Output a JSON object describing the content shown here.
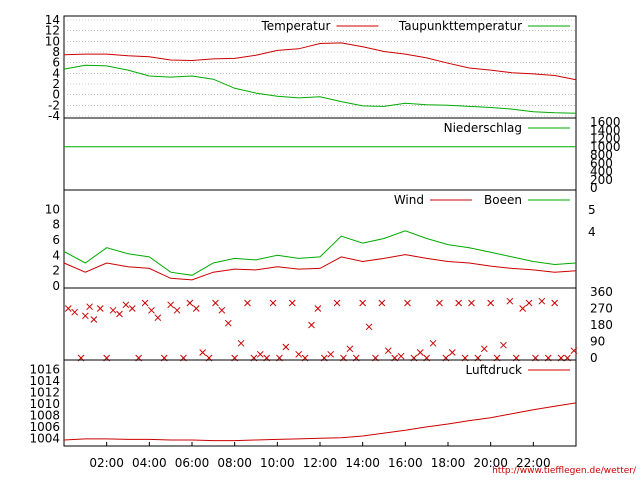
{
  "chart_data": [
    {
      "type": "line",
      "name": "temperature-panel",
      "ylim": [
        -4,
        14
      ],
      "yticks": [
        -4,
        -2,
        0,
        2,
        4,
        6,
        8,
        10,
        12,
        14
      ],
      "grid": true,
      "legend_position": "top-right",
      "series": [
        {
          "name": "Temperatur",
          "color": "#cc0000",
          "x": [
            0,
            1,
            2,
            3,
            4,
            5,
            6,
            7,
            8,
            9,
            10,
            11,
            12,
            13,
            14,
            15,
            16,
            17,
            18,
            19,
            20,
            21,
            22,
            23,
            24
          ],
          "values": [
            7.5,
            7.6,
            7.6,
            7.3,
            7.1,
            6.5,
            6.4,
            6.7,
            6.8,
            7.4,
            8.3,
            8.6,
            9.6,
            9.7,
            9.0,
            8.1,
            7.6,
            6.9,
            5.9,
            5.0,
            4.6,
            4.1,
            3.9,
            3.6,
            2.8
          ]
        },
        {
          "name": "Taupunkttemperatur",
          "color": "#00aa00",
          "x": [
            0,
            1,
            2,
            3,
            4,
            5,
            6,
            7,
            8,
            9,
            10,
            11,
            12,
            13,
            14,
            15,
            16,
            17,
            18,
            19,
            20,
            21,
            22,
            23,
            24
          ],
          "values": [
            4.8,
            5.5,
            5.4,
            4.6,
            3.5,
            3.3,
            3.5,
            2.9,
            1.2,
            0.3,
            -0.3,
            -0.6,
            -0.4,
            -1.3,
            -2.1,
            -2.2,
            -1.6,
            -1.9,
            -2.0,
            -2.2,
            -2.4,
            -2.7,
            -3.2,
            -3.4,
            -3.5
          ]
        }
      ]
    },
    {
      "type": "line",
      "name": "precipitation-panel",
      "ylim": [
        0,
        1600
      ],
      "yticks": [
        0,
        200,
        400,
        600,
        800,
        1000,
        1200,
        1400,
        1600
      ],
      "series": [
        {
          "name": "Niederschlag",
          "color": "#00aa00",
          "x": [
            0,
            24
          ],
          "values": [
            1000,
            1000
          ]
        }
      ]
    },
    {
      "type": "line",
      "name": "wind-panel",
      "ylim": [
        0,
        12
      ],
      "yticks": [
        0,
        2,
        4,
        6,
        8,
        10
      ],
      "right_ticks": [
        "4",
        "5"
      ],
      "series": [
        {
          "name": "Wind",
          "color": "#cc0000",
          "x": [
            0,
            1,
            2,
            3,
            4,
            5,
            6,
            7,
            8,
            9,
            10,
            11,
            12,
            13,
            14,
            15,
            16,
            17,
            18,
            19,
            20,
            21,
            22,
            23,
            24
          ],
          "values": [
            3.0,
            1.8,
            3.0,
            2.5,
            2.3,
            1.0,
            0.8,
            1.8,
            2.2,
            2.1,
            2.5,
            2.2,
            2.3,
            3.8,
            3.2,
            3.6,
            4.1,
            3.6,
            3.2,
            3.0,
            2.6,
            2.3,
            2.1,
            1.8,
            2.0
          ]
        },
        {
          "name": "Boeen",
          "color": "#00aa00",
          "x": [
            0,
            1,
            2,
            3,
            4,
            5,
            6,
            7,
            8,
            9,
            10,
            11,
            12,
            13,
            14,
            15,
            16,
            17,
            18,
            19,
            20,
            21,
            22,
            23,
            24
          ],
          "values": [
            4.5,
            3.0,
            5.0,
            4.2,
            3.8,
            1.8,
            1.4,
            3.0,
            3.6,
            3.4,
            4.0,
            3.6,
            3.8,
            6.5,
            5.6,
            6.2,
            7.2,
            6.2,
            5.4,
            5.0,
            4.4,
            3.8,
            3.2,
            2.8,
            3.0
          ]
        }
      ]
    },
    {
      "type": "scatter",
      "name": "wind-direction-panel",
      "ylim": [
        0,
        360
      ],
      "yticks": [
        0,
        90,
        180,
        270,
        360
      ],
      "marker": "x",
      "color": "#cc0000",
      "note_points": [
        {
          "x": 0.2,
          "y": 270
        },
        {
          "x": 0.5,
          "y": 250
        },
        {
          "x": 0.8,
          "y": 0
        },
        {
          "x": 1.0,
          "y": 230
        },
        {
          "x": 1.2,
          "y": 280
        },
        {
          "x": 1.4,
          "y": 210
        },
        {
          "x": 1.7,
          "y": 270
        },
        {
          "x": 2.0,
          "y": 0
        },
        {
          "x": 2.3,
          "y": 260
        },
        {
          "x": 2.6,
          "y": 240
        },
        {
          "x": 2.9,
          "y": 290
        },
        {
          "x": 3.2,
          "y": 270
        },
        {
          "x": 3.5,
          "y": 0
        },
        {
          "x": 3.8,
          "y": 300
        },
        {
          "x": 4.1,
          "y": 260
        },
        {
          "x": 4.4,
          "y": 220
        },
        {
          "x": 4.7,
          "y": 0
        },
        {
          "x": 5.0,
          "y": 290
        },
        {
          "x": 5.3,
          "y": 260
        },
        {
          "x": 5.6,
          "y": 0
        },
        {
          "x": 5.9,
          "y": 300
        },
        {
          "x": 6.2,
          "y": 270
        },
        {
          "x": 6.5,
          "y": 30
        },
        {
          "x": 6.8,
          "y": 0
        },
        {
          "x": 7.1,
          "y": 300
        },
        {
          "x": 7.4,
          "y": 260
        },
        {
          "x": 7.7,
          "y": 190
        },
        {
          "x": 8.0,
          "y": 0
        },
        {
          "x": 8.3,
          "y": 80
        },
        {
          "x": 8.6,
          "y": 300
        },
        {
          "x": 8.9,
          "y": 0
        },
        {
          "x": 9.2,
          "y": 20
        },
        {
          "x": 9.5,
          "y": 0
        },
        {
          "x": 9.8,
          "y": 300
        },
        {
          "x": 10.1,
          "y": 0
        },
        {
          "x": 10.4,
          "y": 60
        },
        {
          "x": 10.7,
          "y": 300
        },
        {
          "x": 11.0,
          "y": 20
        },
        {
          "x": 11.3,
          "y": 0
        },
        {
          "x": 11.6,
          "y": 180
        },
        {
          "x": 11.9,
          "y": 270
        },
        {
          "x": 12.2,
          "y": 0
        },
        {
          "x": 12.5,
          "y": 20
        },
        {
          "x": 12.8,
          "y": 300
        },
        {
          "x": 13.1,
          "y": 0
        },
        {
          "x": 13.4,
          "y": 50
        },
        {
          "x": 13.7,
          "y": 0
        },
        {
          "x": 14.0,
          "y": 300
        },
        {
          "x": 14.3,
          "y": 170
        },
        {
          "x": 14.6,
          "y": 0
        },
        {
          "x": 14.9,
          "y": 300
        },
        {
          "x": 15.2,
          "y": 40
        },
        {
          "x": 15.5,
          "y": 0
        },
        {
          "x": 15.8,
          "y": 10
        },
        {
          "x": 16.1,
          "y": 300
        },
        {
          "x": 16.4,
          "y": 0
        },
        {
          "x": 16.7,
          "y": 30
        },
        {
          "x": 17.0,
          "y": 0
        },
        {
          "x": 17.3,
          "y": 80
        },
        {
          "x": 17.6,
          "y": 300
        },
        {
          "x": 17.9,
          "y": 0
        },
        {
          "x": 18.2,
          "y": 30
        },
        {
          "x": 18.5,
          "y": 300
        },
        {
          "x": 18.8,
          "y": 0
        },
        {
          "x": 19.1,
          "y": 300
        },
        {
          "x": 19.4,
          "y": 0
        },
        {
          "x": 19.7,
          "y": 50
        },
        {
          "x": 20.0,
          "y": 300
        },
        {
          "x": 20.3,
          "y": 0
        },
        {
          "x": 20.6,
          "y": 70
        },
        {
          "x": 20.9,
          "y": 310
        },
        {
          "x": 21.2,
          "y": 0
        },
        {
          "x": 21.5,
          "y": 270
        },
        {
          "x": 21.8,
          "y": 300
        },
        {
          "x": 22.1,
          "y": 0
        },
        {
          "x": 22.4,
          "y": 310
        },
        {
          "x": 22.7,
          "y": 0
        },
        {
          "x": 23.0,
          "y": 300
        },
        {
          "x": 23.3,
          "y": 0
        },
        {
          "x": 23.6,
          "y": 0
        },
        {
          "x": 23.9,
          "y": 40
        }
      ]
    },
    {
      "type": "line",
      "name": "pressure-panel",
      "ylim": [
        1003,
        1017
      ],
      "yticks": [
        1004,
        1006,
        1008,
        1010,
        1012,
        1014,
        1016
      ],
      "series": [
        {
          "name": "Luftdruck",
          "color": "#cc0000",
          "x": [
            0,
            1,
            2,
            3,
            4,
            5,
            6,
            7,
            8,
            9,
            10,
            11,
            12,
            13,
            14,
            15,
            16,
            17,
            18,
            19,
            20,
            21,
            22,
            23,
            24
          ],
          "values": [
            1003.7,
            1003.9,
            1003.9,
            1003.8,
            1003.8,
            1003.7,
            1003.7,
            1003.6,
            1003.6,
            1003.7,
            1003.8,
            1003.9,
            1004.0,
            1004.1,
            1004.4,
            1004.9,
            1005.4,
            1006.0,
            1006.5,
            1007.1,
            1007.6,
            1008.3,
            1009.0,
            1009.6,
            1010.2
          ]
        }
      ]
    }
  ],
  "x_axis": {
    "tick_labels": [
      "02:00",
      "04:00",
      "06:00",
      "08:00",
      "10:00",
      "12:00",
      "14:00",
      "16:00",
      "18:00",
      "20:00",
      "22:00"
    ],
    "tick_hours": [
      2,
      4,
      6,
      8,
      10,
      12,
      14,
      16,
      18,
      20,
      22
    ],
    "range_hours": [
      0,
      24
    ]
  },
  "legend_labels": {
    "temperature": "Temperatur",
    "dewpoint": "Taupunkttemperatur",
    "precip": "Niederschlag",
    "wind": "Wind",
    "gust": "Boeen",
    "pressure": "Luftdruck"
  },
  "url": "http://www.tiefflegen.de/wetter/"
}
